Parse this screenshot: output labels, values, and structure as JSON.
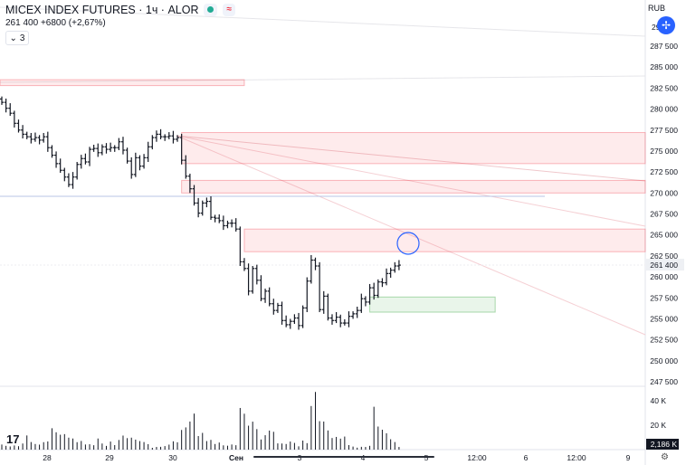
{
  "header": {
    "title": "MICEX INDEX FUTURES · 1ч · ALOR",
    "price": "261 400",
    "change": "+6800 (+2,67%)",
    "indicator_count": "3",
    "currency": "RUB"
  },
  "chart_data": {
    "type": "candlestick",
    "y_axis": {
      "ticks": [
        "287 500",
        "285 000",
        "282 500",
        "280 000",
        "277 500",
        "275 000",
        "272 500",
        "270 000",
        "267 500",
        "265 000",
        "262 500",
        "260 000",
        "257 500",
        "255 000",
        "252 500",
        "250 000",
        "247 500"
      ],
      "top_partial_label": "29",
      "last_price_label": "261 400"
    },
    "x_axis": {
      "ticks": [
        "28",
        "29",
        "30",
        "Сен",
        "3",
        "4",
        "5",
        "12:00",
        "6",
        "12:00",
        "9"
      ]
    },
    "volume_axis": {
      "ticks": [
        "40 K",
        "20 K"
      ],
      "last_volume_label": "2,186 K"
    },
    "zones": [
      {
        "kind": "resistance",
        "from": 282800,
        "to": 283500,
        "x_start": "start",
        "x_end": "Сен"
      },
      {
        "kind": "resistance",
        "from": 273500,
        "to": 277200,
        "x_start": "30",
        "x_end": "edge"
      },
      {
        "kind": "resistance",
        "from": 270000,
        "to": 271500,
        "x_start": "30",
        "x_end": "edge"
      },
      {
        "kind": "resistance",
        "from": 263000,
        "to": 265700,
        "x_start": "Сен",
        "x_end": "edge"
      },
      {
        "kind": "support",
        "from": 255800,
        "to": 257600,
        "x_start": "4",
        "x_end": "12:00"
      }
    ],
    "prices": [
      280800,
      280100,
      279500,
      278300,
      277500,
      277000,
      276700,
      276400,
      276600,
      276300,
      276700,
      275400,
      274500,
      273500,
      272700,
      271900,
      271000,
      271900,
      273400,
      274100,
      273700,
      275200,
      275300,
      274800,
      275500,
      275200,
      275400,
      275400,
      276100,
      275100,
      273800,
      272200,
      274200,
      273200,
      274200,
      275500,
      276600,
      277000,
      276700,
      276700,
      276800,
      276400,
      276600,
      273900,
      272000,
      270500,
      268800,
      267600,
      268800,
      269000,
      267100,
      267000,
      266700,
      266100,
      266400,
      266400,
      265700,
      261800,
      261000,
      258300,
      261000,
      259600,
      257400,
      258300,
      256800,
      256000,
      256600,
      254800,
      254300,
      254700,
      255100,
      254200,
      256300,
      259500,
      262000,
      261300,
      256100,
      257700,
      255100,
      254800,
      255200,
      254500,
      254500,
      255300,
      255600,
      256000,
      257400,
      257000,
      258700,
      257800,
      259400,
      259300,
      260400,
      260800,
      261300,
      261400
    ],
    "volumes_k": [
      4.2,
      3.1,
      2.6,
      3.4,
      2.8,
      5.0,
      11.6,
      6.2,
      4.6,
      4.1,
      6.1,
      6.7,
      17.5,
      14.2,
      12.2,
      12.7,
      9.8,
      9.1,
      6.1,
      7.1,
      4.2,
      4.4,
      3.6,
      9.1,
      5.0,
      3.1,
      6.6,
      3.7,
      7.9,
      11.5,
      9.4,
      9.8,
      8.2,
      7.0,
      6.2,
      4.5,
      1.5,
      2.2,
      2.3,
      2.9,
      4.1,
      6.8,
      6.0,
      16.1,
      18.2,
      23.0,
      29.5,
      11.1,
      13.7,
      7.0,
      8.0,
      4.6,
      5.8,
      3.5,
      3.2,
      4.2,
      3.6,
      34.1,
      29.4,
      19.6,
      22.9,
      16.8,
      8.3,
      11.8,
      15.6,
      14.6,
      5.1,
      5.0,
      4.6,
      6.6,
      5.5,
      2.7,
      7.4,
      5.3,
      35.7,
      47.2,
      23.3,
      23.0,
      15.7,
      9.5,
      10.4,
      9.0,
      10.7,
      3.7,
      2.5,
      1.6,
      2.3,
      2.2,
      3.1,
      35.1,
      18.9,
      16.3,
      13.4,
      8.5,
      6.2,
      2.2
    ]
  }
}
